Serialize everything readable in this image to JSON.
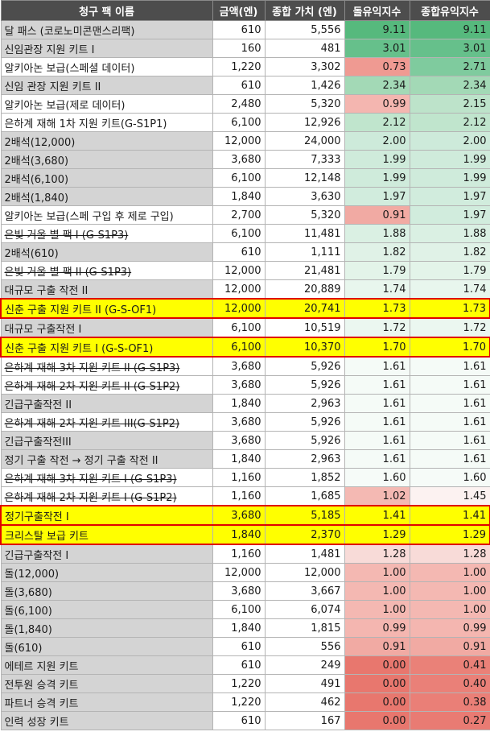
{
  "headers": [
    "청구 팩 이름",
    "금액(엔)",
    "종합 가치 (엔)",
    "돌유익지수",
    "종합유익지수"
  ],
  "rows": [
    {
      "name": "달 패스 (코로노미콘맨스리팩)",
      "price": "610",
      "value": "5,556",
      "idx1": "9.11",
      "idx2": "9.11",
      "c1": "#56b97d",
      "c2": "#56b97d",
      "shade": "g",
      "strike": false,
      "highlight": false
    },
    {
      "name": "신임관장 지원 키트 Ⅰ",
      "price": "160",
      "value": "481",
      "idx1": "3.01",
      "idx2": "3.01",
      "c1": "#66c08b",
      "c2": "#66c08b",
      "shade": "g",
      "strike": false,
      "highlight": false
    },
    {
      "name": "알키아논 보급(스페셜 데이터)",
      "price": "1,220",
      "value": "3,302",
      "idx1": "0.73",
      "idx2": "2.71",
      "c1": "#ef9a92",
      "c2": "#7fcb9e",
      "shade": "w",
      "strike": false,
      "highlight": false
    },
    {
      "name": "신임 관장 지원 키트 II",
      "price": "610",
      "value": "1,426",
      "idx1": "2.34",
      "idx2": "2.34",
      "c1": "#a3d9b6",
      "c2": "#a3d9b6",
      "shade": "g",
      "strike": false,
      "highlight": false
    },
    {
      "name": "알키아논 보급(제로 데이터)",
      "price": "2,480",
      "value": "5,320",
      "idx1": "0.99",
      "idx2": "2.15",
      "c1": "#f4b6b0",
      "c2": "#bde3ca",
      "shade": "w",
      "strike": false,
      "highlight": false
    },
    {
      "name": "은하계 재해 1차 지원 키트(G-S1P1)",
      "price": "6,100",
      "value": "12,926",
      "idx1": "2.12",
      "idx2": "2.12",
      "c1": "#c0e5cd",
      "c2": "#c0e5cd",
      "shade": "w",
      "strike": false,
      "highlight": false
    },
    {
      "name": "2배석(12,000)",
      "price": "12,000",
      "value": "24,000",
      "idx1": "2.00",
      "idx2": "2.00",
      "c1": "#cdeada",
      "c2": "#cdeada",
      "shade": "g",
      "strike": false,
      "highlight": false
    },
    {
      "name": "2배석(3,680)",
      "price": "3,680",
      "value": "7,333",
      "idx1": "1.99",
      "idx2": "1.99",
      "c1": "#cfebdb",
      "c2": "#cfebdb",
      "shade": "g",
      "strike": false,
      "highlight": false
    },
    {
      "name": "2배석(6,100)",
      "price": "6,100",
      "value": "12,148",
      "idx1": "1.99",
      "idx2": "1.99",
      "c1": "#cfebdb",
      "c2": "#cfebdb",
      "shade": "g",
      "strike": false,
      "highlight": false
    },
    {
      "name": "2배석(1,840)",
      "price": "1,840",
      "value": "3,630",
      "idx1": "1.97",
      "idx2": "1.97",
      "c1": "#d1ecdd",
      "c2": "#d1ecdd",
      "shade": "g",
      "strike": false,
      "highlight": false
    },
    {
      "name": "알키아논 보급(스페 구입 후 제로 구입)",
      "price": "2,700",
      "value": "5,320",
      "idx1": "0.91",
      "idx2": "1.97",
      "c1": "#f1aaa3",
      "c2": "#d1ecdd",
      "shade": "w",
      "strike": false,
      "highlight": false
    },
    {
      "name": "은빛 거울 별 팩 Ⅰ (G-S1P3)",
      "price": "6,100",
      "value": "11,481",
      "idx1": "1.88",
      "idx2": "1.88",
      "c1": "#daf0e3",
      "c2": "#daf0e3",
      "shade": "w",
      "strike": true,
      "highlight": false
    },
    {
      "name": "2배석(610)",
      "price": "610",
      "value": "1,111",
      "idx1": "1.82",
      "idx2": "1.82",
      "c1": "#e0f2e7",
      "c2": "#e0f2e7",
      "shade": "g",
      "strike": false,
      "highlight": false
    },
    {
      "name": "은빛 거울 별 팩 II (G-S1P3)",
      "price": "12,000",
      "value": "21,481",
      "idx1": "1.79",
      "idx2": "1.79",
      "c1": "#e3f4e9",
      "c2": "#e3f4e9",
      "shade": "w",
      "strike": true,
      "highlight": false
    },
    {
      "name": "대규모 구출 작전 II",
      "price": "12,000",
      "value": "20,889",
      "idx1": "1.74",
      "idx2": "1.74",
      "c1": "#e8f6ed",
      "c2": "#e8f6ed",
      "shade": "g",
      "strike": false,
      "highlight": false
    },
    {
      "name": "신춘 구출 지원 키트 II (G-S-OF1)",
      "price": "12,000",
      "value": "20,741",
      "idx1": "1.73",
      "idx2": "1.73",
      "c1": "#eaf7ef",
      "c2": "#eaf7ef",
      "shade": "g",
      "strike": false,
      "highlight": true
    },
    {
      "name": "대규모 구출작전 I",
      "price": "6,100",
      "value": "10,519",
      "idx1": "1.72",
      "idx2": "1.72",
      "c1": "#ebf7f0",
      "c2": "#ebf7f0",
      "shade": "g",
      "strike": false,
      "highlight": false
    },
    {
      "name": "신춘 구출 지원 키트 Ⅰ (G-S-OF1)",
      "price": "6,100",
      "value": "10,370",
      "idx1": "1.70",
      "idx2": "1.70",
      "c1": "#edf8f1",
      "c2": "#edf8f1",
      "shade": "g",
      "strike": false,
      "highlight": true
    },
    {
      "name": "은하계 재해 3차 지원 키트 II (G-S1P3)",
      "price": "3,680",
      "value": "5,926",
      "idx1": "1.61",
      "idx2": "1.61",
      "c1": "#f5fbf7",
      "c2": "#f5fbf7",
      "shade": "w",
      "strike": true,
      "highlight": false
    },
    {
      "name": "은하계 재해 2차 지원 키트 II (G-S1P2)",
      "price": "3,680",
      "value": "5,926",
      "idx1": "1.61",
      "idx2": "1.61",
      "c1": "#f5fbf7",
      "c2": "#f5fbf7",
      "shade": "w",
      "strike": true,
      "highlight": false
    },
    {
      "name": "긴급구출작전 II",
      "price": "1,840",
      "value": "2,963",
      "idx1": "1.61",
      "idx2": "1.61",
      "c1": "#f5fbf7",
      "c2": "#f5fbf7",
      "shade": "g",
      "strike": false,
      "highlight": false
    },
    {
      "name": "은하계 재해 2차 지원 키트 III(G-S1P2)",
      "price": "3,680",
      "value": "5,926",
      "idx1": "1.61",
      "idx2": "1.61",
      "c1": "#f5fbf7",
      "c2": "#f5fbf7",
      "shade": "w",
      "strike": true,
      "highlight": false
    },
    {
      "name": "긴급구출작전III",
      "price": "3,680",
      "value": "5,926",
      "idx1": "1.61",
      "idx2": "1.61",
      "c1": "#f5fbf7",
      "c2": "#f5fbf7",
      "shade": "g",
      "strike": false,
      "highlight": false
    },
    {
      "name": "정기 구출 작전 → 정기 구출 작전 II",
      "price": "1,840",
      "value": "2,963",
      "idx1": "1.61",
      "idx2": "1.61",
      "c1": "#f5fbf7",
      "c2": "#f5fbf7",
      "shade": "g",
      "strike": false,
      "highlight": false
    },
    {
      "name": "은하계 재해 3차 지원 키트 Ⅰ (G-S1P3)",
      "price": "1,160",
      "value": "1,852",
      "idx1": "1.60",
      "idx2": "1.60",
      "c1": "#f6fbf8",
      "c2": "#f6fbf8",
      "shade": "w",
      "strike": true,
      "highlight": false
    },
    {
      "name": "은하계 재해 2차 지원 키트 Ⅰ (G-S1P2)",
      "price": "1,160",
      "value": "1,685",
      "idx1": "1.02",
      "idx2": "1.45",
      "c1": "#f4b9b3",
      "c2": "#fcf2f1",
      "shade": "w",
      "strike": true,
      "highlight": false
    },
    {
      "name": "정기구출작전 I",
      "price": "3,680",
      "value": "5,185",
      "idx1": "1.41",
      "idx2": "1.41",
      "c1": "#fbedec",
      "c2": "#fbedec",
      "shade": "g",
      "strike": false,
      "highlight": true
    },
    {
      "name": "크리스탈 보급 키트",
      "price": "1,840",
      "value": "2,370",
      "idx1": "1.29",
      "idx2": "1.29",
      "c1": "#f8dcd9",
      "c2": "#f8dcd9",
      "shade": "g",
      "strike": false,
      "highlight": true
    },
    {
      "name": "긴급구출작전 I",
      "price": "1,160",
      "value": "1,481",
      "idx1": "1.28",
      "idx2": "1.28",
      "c1": "#f8dbd8",
      "c2": "#f8dbd8",
      "shade": "g",
      "strike": false,
      "highlight": false
    },
    {
      "name": "돌(12,000)",
      "price": "12,000",
      "value": "12,000",
      "idx1": "1.00",
      "idx2": "1.00",
      "c1": "#f4b8b2",
      "c2": "#f4b8b2",
      "shade": "g",
      "strike": false,
      "highlight": false
    },
    {
      "name": "돌(3,680)",
      "price": "3,680",
      "value": "3,667",
      "idx1": "1.00",
      "idx2": "1.00",
      "c1": "#f4b8b2",
      "c2": "#f4b8b2",
      "shade": "g",
      "strike": false,
      "highlight": false
    },
    {
      "name": "돌(6,100)",
      "price": "6,100",
      "value": "6,074",
      "idx1": "1.00",
      "idx2": "1.00",
      "c1": "#f4b8b2",
      "c2": "#f4b8b2",
      "shade": "g",
      "strike": false,
      "highlight": false
    },
    {
      "name": "돌(1,840)",
      "price": "1,840",
      "value": "1,815",
      "idx1": "0.99",
      "idx2": "0.99",
      "c1": "#f4b6b0",
      "c2": "#f4b6b0",
      "shade": "g",
      "strike": false,
      "highlight": false
    },
    {
      "name": "돌(610)",
      "price": "610",
      "value": "556",
      "idx1": "0.91",
      "idx2": "0.91",
      "c1": "#f1aaa3",
      "c2": "#f1aaa3",
      "shade": "g",
      "strike": false,
      "highlight": false
    },
    {
      "name": "에테르 지원 키트",
      "price": "610",
      "value": "249",
      "idx1": "0.00",
      "idx2": "0.41",
      "c1": "#e8776e",
      "c2": "#ea8178",
      "shade": "g",
      "strike": false,
      "highlight": false
    },
    {
      "name": "전투원 승격 키트",
      "price": "1,220",
      "value": "491",
      "idx1": "0.00",
      "idx2": "0.40",
      "c1": "#e8776e",
      "c2": "#ea8078",
      "shade": "g",
      "strike": false,
      "highlight": false
    },
    {
      "name": "파트너 승격 키트",
      "price": "1,220",
      "value": "462",
      "idx1": "0.00",
      "idx2": "0.38",
      "c1": "#e8776e",
      "c2": "#ea7f77",
      "shade": "g",
      "strike": false,
      "highlight": false
    },
    {
      "name": "인력 성장 키트",
      "price": "610",
      "value": "167",
      "idx1": "0.00",
      "idx2": "0.27",
      "c1": "#e8776e",
      "c2": "#e97b73",
      "shade": "g",
      "strike": false,
      "highlight": false
    }
  ]
}
